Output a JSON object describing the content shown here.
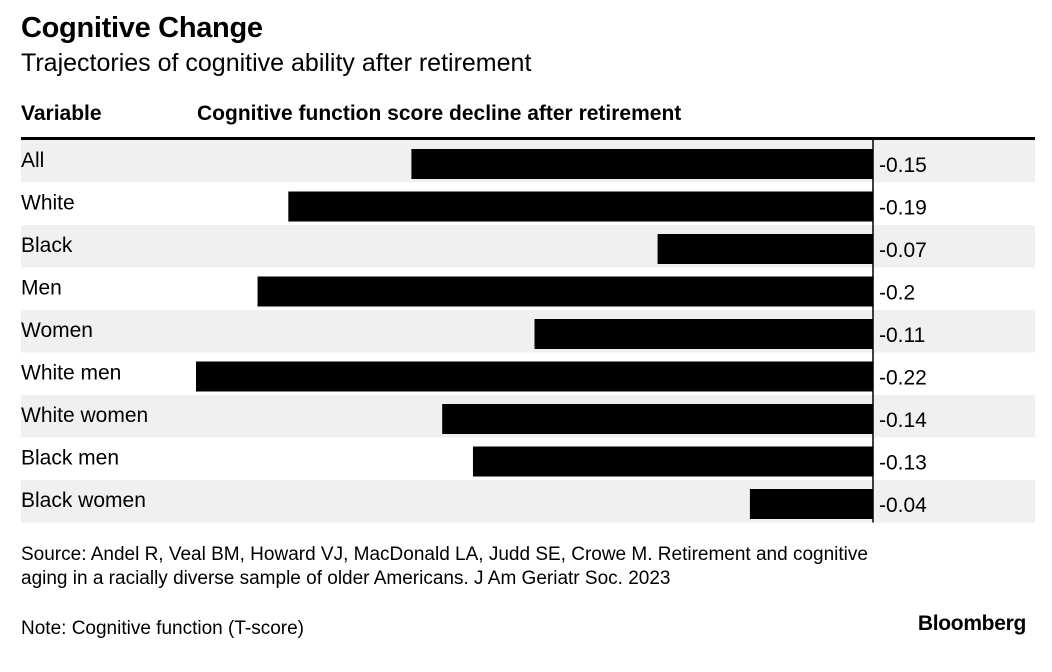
{
  "header": {
    "title": "Cognitive Change",
    "subtitle": "Trajectories of cognitive ability after retirement"
  },
  "table": {
    "variable_header": "Variable",
    "value_header": "Cognitive function score decline after retirement"
  },
  "colors": {
    "bar": "#000000",
    "row_shade": "#f0f0f0",
    "row_plain": "#ffffff"
  },
  "chart_data": {
    "type": "bar",
    "orientation": "horizontal",
    "title": "Cognitive Change",
    "subtitle": "Trajectories of cognitive ability after retirement",
    "xlabel": "Cognitive function score decline after retirement",
    "ylabel": "Variable",
    "categories": [
      "All",
      "White",
      "Black",
      "Men",
      "Women",
      "White men",
      "White women",
      "Black men",
      "Black women"
    ],
    "values": [
      -0.15,
      -0.19,
      -0.07,
      -0.2,
      -0.11,
      -0.22,
      -0.14,
      -0.13,
      -0.04
    ],
    "value_labels": [
      "-0.15",
      "-0.19",
      "-0.07",
      "-0.2",
      "-0.11",
      "-0.22",
      "-0.14",
      "-0.13",
      "-0.04"
    ],
    "xlim": [
      -0.22,
      0
    ],
    "grid": false,
    "legend": "none"
  },
  "footer": {
    "source": "Source: Andel R, Veal BM, Howard VJ, MacDonald LA, Judd SE, Crowe M. Retirement and cognitive aging in a racially diverse sample of older Americans. J Am Geriatr Soc. 2023",
    "note": "Note: Cognitive function (T-score)",
    "logo": "Bloomberg"
  }
}
